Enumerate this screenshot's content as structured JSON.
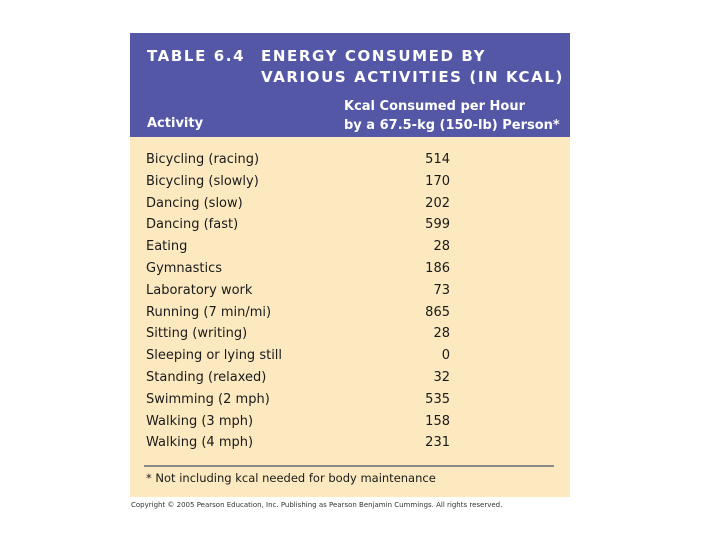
{
  "table": {
    "title_number": "TABLE 6.4",
    "title_line1": "ENERGY CONSUMED BY",
    "title_line2": "VARIOUS ACTIVITIES (IN KCAL)",
    "header_activity": "Activity",
    "header_kcal_line1": "Kcal Consumed per Hour",
    "header_kcal_line2": "by a 67.5-kg (150-lb) Person*",
    "rows": [
      {
        "activity": "Bicycling (racing)",
        "kcal": "514"
      },
      {
        "activity": "Bicycling (slowly)",
        "kcal": "170"
      },
      {
        "activity": "Dancing (slow)",
        "kcal": "202"
      },
      {
        "activity": "Dancing (fast)",
        "kcal": "599"
      },
      {
        "activity": "Eating",
        "kcal": "28"
      },
      {
        "activity": "Gymnastics",
        "kcal": "186"
      },
      {
        "activity": "Laboratory work",
        "kcal": "73"
      },
      {
        "activity": "Running (7 min/mi)",
        "kcal": "865"
      },
      {
        "activity": "Sitting (writing)",
        "kcal": "28"
      },
      {
        "activity": "Sleeping or lying still",
        "kcal": "0"
      },
      {
        "activity": "Standing (relaxed)",
        "kcal": "32"
      },
      {
        "activity": "Swimming (2 mph)",
        "kcal": "535"
      },
      {
        "activity": "Walking (3 mph)",
        "kcal": "158"
      },
      {
        "activity": "Walking (4 mph)",
        "kcal": "231"
      }
    ],
    "footnote": "* Not including kcal needed for body maintenance"
  },
  "copyright": "Copyright © 2005 Pearson Education, Inc. Publishing as Pearson Benjamin Cummings. All rights reserved.",
  "colors": {
    "title_bar": "#5357a6",
    "table_background": "#fce9c0",
    "title_text": "#ffffff"
  }
}
